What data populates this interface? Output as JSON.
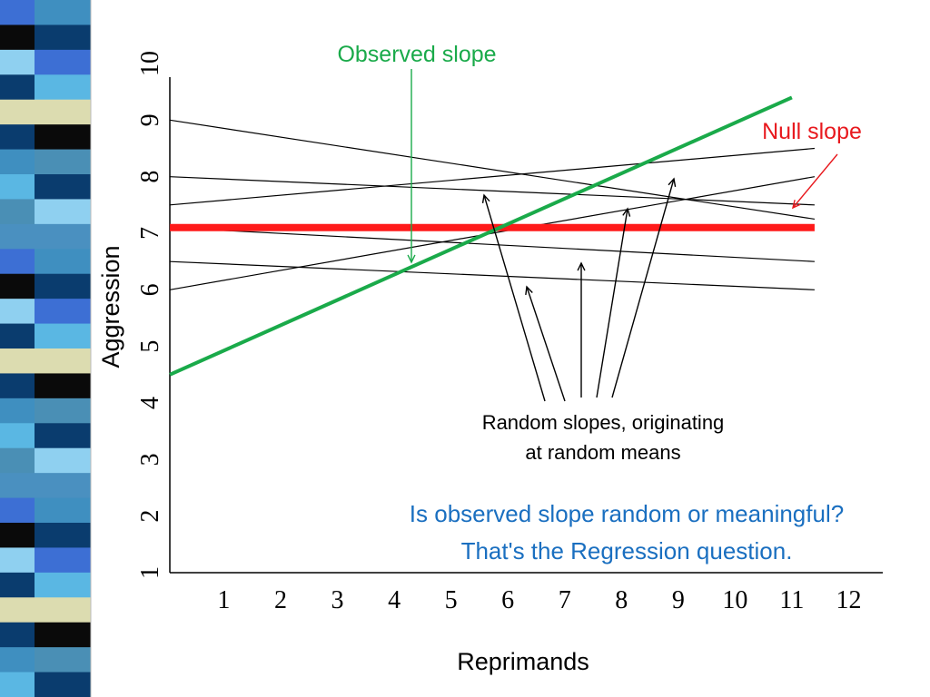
{
  "decoration": {
    "strip_colors": [
      "#3f8fc0",
      "#0a3c6e",
      "#3d6fd4",
      "#5ab7e3",
      "#dcdcb0",
      "#0a0a0a",
      "#4a8fb5",
      "#0a3c6e",
      "#8fd0f0",
      "#4a90c0"
    ]
  },
  "chart_data": {
    "type": "line",
    "xlabel": "Reprimands",
    "ylabel": "Aggression",
    "x_ticks": [
      "1",
      "2",
      "3",
      "4",
      "5",
      "6",
      "7",
      "8",
      "9",
      "10",
      "11",
      "12"
    ],
    "y_ticks": [
      "1",
      "2",
      "3",
      "4",
      "5",
      "6",
      "7",
      "8",
      "9",
      "10"
    ],
    "xlim": [
      0.05,
      12.6
    ],
    "ylim": [
      1,
      10
    ],
    "grid": false,
    "series": [
      {
        "kind": "observed",
        "color": "#1aaa4a",
        "points": [
          [
            0.05,
            4.5
          ],
          [
            11.0,
            9.4
          ]
        ]
      },
      {
        "kind": "null",
        "color": "#ff1a1a",
        "points": [
          [
            0.05,
            7.1
          ],
          [
            11.4,
            7.1
          ]
        ]
      },
      {
        "kind": "random",
        "color": "#000000",
        "points": [
          [
            0.05,
            9.0
          ],
          [
            11.4,
            7.25
          ]
        ]
      },
      {
        "kind": "random",
        "color": "#000000",
        "points": [
          [
            0.05,
            8.0
          ],
          [
            11.4,
            7.5
          ]
        ]
      },
      {
        "kind": "random",
        "color": "#000000",
        "points": [
          [
            0.05,
            7.5
          ],
          [
            11.4,
            8.5
          ]
        ]
      },
      {
        "kind": "random",
        "color": "#000000",
        "points": [
          [
            0.05,
            7.1
          ],
          [
            11.4,
            6.5
          ]
        ]
      },
      {
        "kind": "random",
        "color": "#000000",
        "points": [
          [
            0.05,
            6.5
          ],
          [
            11.4,
            6.0
          ]
        ]
      },
      {
        "kind": "random",
        "color": "#000000",
        "points": [
          [
            0.05,
            6.0
          ],
          [
            11.4,
            8.0
          ]
        ]
      }
    ],
    "annotations": {
      "observed_slope": {
        "text": "Observed slope",
        "color": "#1aaa4a"
      },
      "null_slope": {
        "text": "Null slope",
        "color": "#e8191e"
      },
      "random_line1": "Random slopes, originating",
      "random_line2": "at random means",
      "question_line1": "Is observed slope random or meaningful?",
      "question_line2": "That's the Regression question.",
      "question_color": "#1a6fc0"
    }
  }
}
